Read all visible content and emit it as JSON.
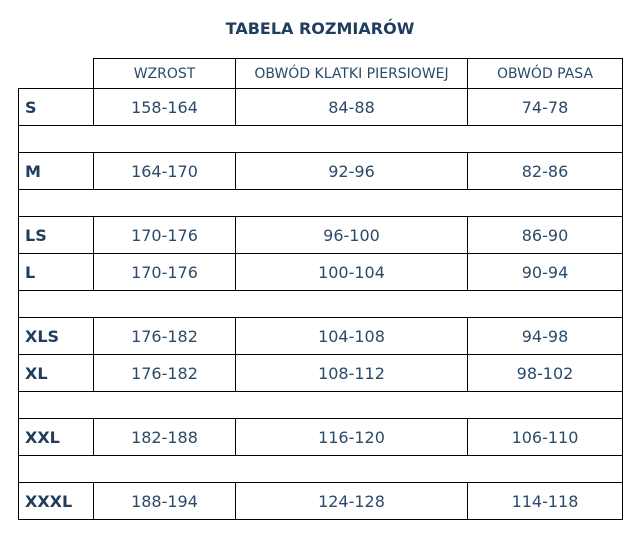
{
  "title": "TABELA ROZMIARÓW",
  "headers": [
    "WZROST",
    "OBWÓD KLATKI PIERSIOWEJ",
    "OBWÓD PASA"
  ],
  "rows": [
    {
      "size": "S",
      "height": "158-164",
      "chest": "84-88",
      "waist": "74-78"
    },
    {
      "size": "M",
      "height": "164-170",
      "chest": "92-96",
      "waist": "82-86"
    },
    {
      "size": "LS",
      "height": "170-176",
      "chest": "96-100",
      "waist": "86-90"
    },
    {
      "size": "L",
      "height": "170-176",
      "chest": "100-104",
      "waist": "90-94"
    },
    {
      "size": "XLS",
      "height": "176-182",
      "chest": "104-108",
      "waist": "94-98"
    },
    {
      "size": "XL",
      "height": "176-182",
      "chest": "108-112",
      "waist": "98-102"
    },
    {
      "size": "XXL",
      "height": "182-188",
      "chest": "116-120",
      "waist": "106-110"
    },
    {
      "size": "XXXL",
      "height": "188-194",
      "chest": "124-128",
      "waist": "114-118"
    }
  ],
  "colors": {
    "text": "#1f3d5c",
    "accent": "#3b6ea0"
  }
}
